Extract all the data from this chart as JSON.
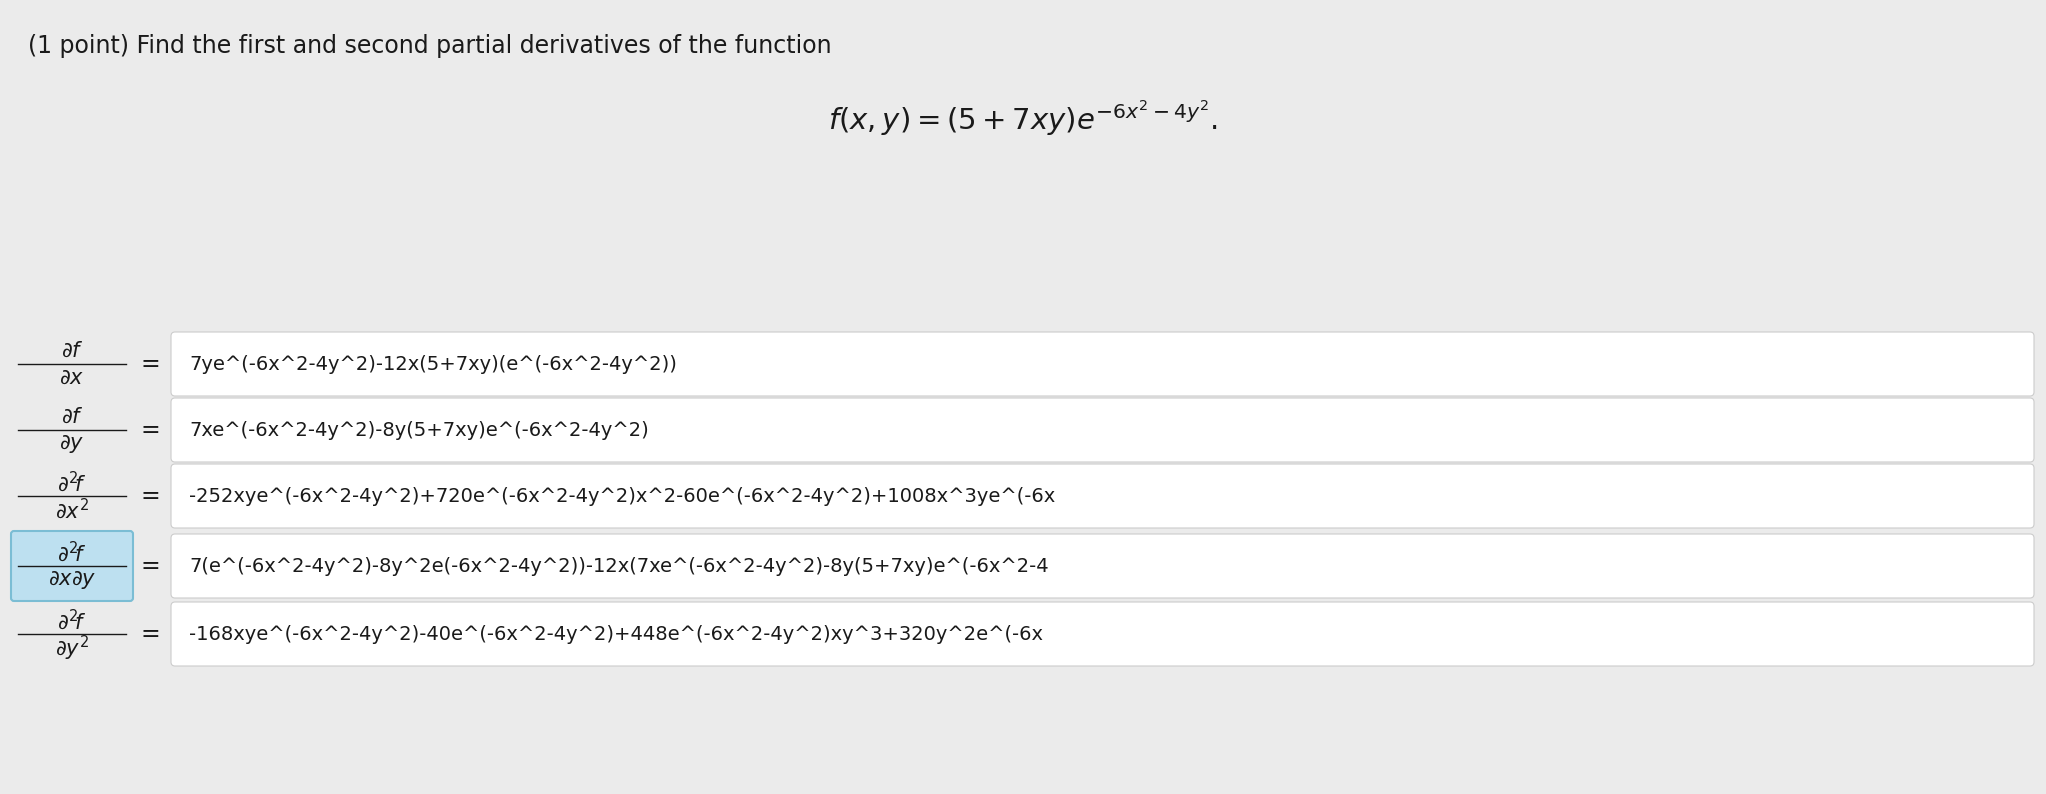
{
  "background_color": "#ebebeb",
  "title_text": "(1 point) Find the first and second partial derivatives of the function",
  "function_latex": "$f(x, y) = (5 + 7xy)e^{-6x^2-4y^2}.$",
  "rows": [
    {
      "label_top": "$\\partial f$",
      "label_bot": "$\\partial x$",
      "value": "7ye^(-6x^2-4y^2)-12x(5+7xy)(e^(-6x^2-4y^2))",
      "highlight": false
    },
    {
      "label_top": "$\\partial f$",
      "label_bot": "$\\partial y$",
      "value": "7xe^(-6x^2-4y^2)-8y(5+7xy)e^(-6x^2-4y^2)",
      "highlight": false
    },
    {
      "label_top": "$\\partial^2\\!f$",
      "label_bot": "$\\partial x^2$",
      "value": "-252xye^(-6x^2-4y^2)+720e^(-6x^2-4y^2)x^2-60e^(-6x^2-4y^2)+1008x^3ye^(-6x",
      "highlight": false
    },
    {
      "label_top": "$\\partial^2\\!f$",
      "label_bot": "$\\partial x\\partial y$",
      "value": "7(e^(-6x^2-4y^2)-8y^2e(-6x^2-4y^2))-12x(7xe^(-6x^2-4y^2)-8y(5+7xy)e^(-6x^2-4",
      "highlight": true
    },
    {
      "label_top": "$\\partial^2\\!f$",
      "label_bot": "$\\partial y^2$",
      "value": "-168xye^(-6x^2-4y^2)-40e^(-6x^2-4y^2)+448e^(-6x^2-4y^2)xy^3+320y^2e^(-6x",
      "highlight": false
    }
  ],
  "box_fill": "#ffffff",
  "box_edge": "#cccccc",
  "highlight_fill": "#bde0f0",
  "highlight_edge": "#7bbdd4",
  "text_color": "#1a1a1a",
  "label_color": "#1a1a1a",
  "title_fontsize": 17,
  "func_fontsize": 21,
  "label_fontsize": 15,
  "value_fontsize": 14,
  "eq_fontsize": 17
}
